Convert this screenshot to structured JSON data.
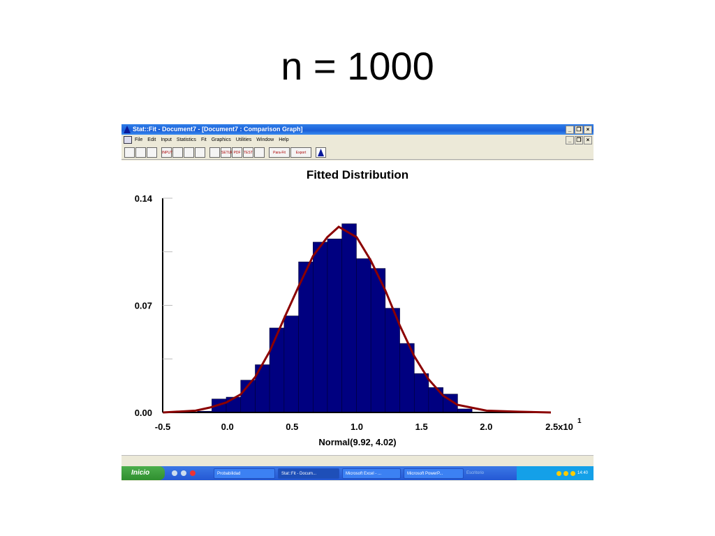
{
  "slide": {
    "title": "n = 1000"
  },
  "window": {
    "title": "Stat::Fit - Document7 - [Document7 : Comparison Graph]",
    "menu": [
      "File",
      "Edit",
      "Input",
      "Statistics",
      "Fit",
      "Graphics",
      "Utilities",
      "Window",
      "Help"
    ],
    "toolbar": {
      "para_fit": "Para-Fit",
      "export": "Export",
      "setup": "SETUP",
      "input_data": "INPUT DATA",
      "test": "TEST",
      "pdf": "PDF"
    },
    "buttons": {
      "minimize": "_",
      "restore": "❐",
      "close": "×"
    }
  },
  "taskbar": {
    "start": "Inicio",
    "tasks": [
      "Probabilidad",
      "Stat::Fit - Docum...",
      "Microsoft Excel - ...",
      "Microsoft PowerP..."
    ],
    "desktop": "Escritorio",
    "clock": "14:40"
  },
  "chart_data": {
    "type": "bar",
    "title": "Fitted Distribution",
    "xlabel": "Normal(9.92, 4.02)",
    "x_tick_labels": [
      "-0.5",
      "0.0",
      "0.5",
      "1.0",
      "1.5",
      "2.0",
      "2.5x10"
    ],
    "x_exponent": "1",
    "x_ticks": [
      -0.5,
      0.0,
      0.5,
      1.0,
      1.5,
      2.0,
      2.5
    ],
    "y_tick_labels": [
      "0.14",
      "0.07",
      "0.00"
    ],
    "y_ticks": [
      0.14,
      0.07,
      0.0
    ],
    "xlim": [
      -0.5,
      2.5
    ],
    "ylim": [
      0,
      0.14
    ],
    "bin_edges": [
      -0.232,
      -0.12,
      -0.009,
      0.103,
      0.215,
      0.326,
      0.438,
      0.55,
      0.662,
      0.773,
      0.885,
      0.997,
      1.109,
      1.22,
      1.332,
      1.444,
      1.555,
      1.667,
      1.779,
      1.891
    ],
    "values": [
      0.0008,
      0.0088,
      0.01,
      0.0211,
      0.0312,
      0.0552,
      0.0631,
      0.0984,
      0.1113,
      0.1134,
      0.1233,
      0.1005,
      0.0941,
      0.0681,
      0.0451,
      0.0254,
      0.0163,
      0.012,
      0.0023
    ],
    "fitted_curve": {
      "x": [
        -0.498,
        -0.246,
        -0.137,
        -0.009,
        0.104,
        0.216,
        0.327,
        0.437,
        0.551,
        0.662,
        0.772,
        0.86,
        0.999,
        1.108,
        1.222,
        1.333,
        1.443,
        1.554,
        1.666,
        1.777,
        2.002,
        2.245,
        2.5
      ],
      "y": [
        0.0,
        0.0012,
        0.0032,
        0.0065,
        0.0119,
        0.0233,
        0.04,
        0.0613,
        0.0825,
        0.1023,
        0.1145,
        0.1213,
        0.1145,
        0.0993,
        0.0795,
        0.0567,
        0.0369,
        0.0217,
        0.0111,
        0.005,
        0.0012,
        0.0005,
        0.0
      ]
    },
    "colors": {
      "bars": "#000080",
      "curve": "#8b0000",
      "bar_edge": "#000033"
    },
    "grid": false
  }
}
